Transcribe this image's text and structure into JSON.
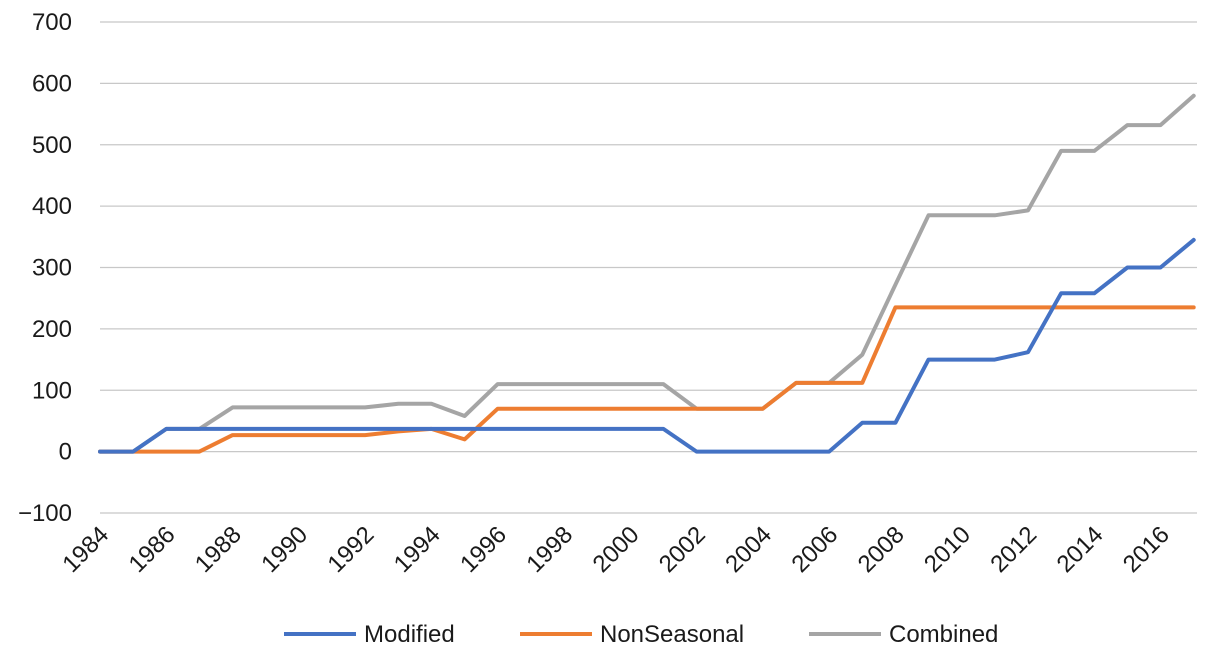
{
  "chart_data": {
    "type": "line",
    "title": "",
    "xlabel": "",
    "ylabel": "",
    "x": [
      1984,
      1985,
      1986,
      1987,
      1988,
      1989,
      1990,
      1991,
      1992,
      1993,
      1994,
      1995,
      1996,
      1997,
      1998,
      1999,
      2000,
      2001,
      2002,
      2003,
      2004,
      2005,
      2006,
      2007,
      2008,
      2009,
      2010,
      2011,
      2012,
      2013,
      2014,
      2015,
      2016,
      2017
    ],
    "x_tick_labels": [
      "1984",
      "1986",
      "1988",
      "1990",
      "1992",
      "1994",
      "1996",
      "1998",
      "2000",
      "2002",
      "2004",
      "2006",
      "2008",
      "2010",
      "2012",
      "2014",
      "2016"
    ],
    "ylim": [
      -100,
      700
    ],
    "y_ticks": [
      -100,
      0,
      100,
      200,
      300,
      400,
      500,
      600,
      700
    ],
    "y_tick_labels": [
      "−100",
      "0",
      "100",
      "200",
      "300",
      "400",
      "500",
      "600",
      "700"
    ],
    "grid": "horizontal",
    "legend": "bottom",
    "series": [
      {
        "name": "Modified",
        "color": "#4472C4",
        "values": [
          0,
          0,
          37,
          37,
          37,
          37,
          37,
          37,
          37,
          37,
          37,
          37,
          37,
          37,
          37,
          37,
          37,
          37,
          0,
          0,
          0,
          0,
          0,
          47,
          47,
          150,
          150,
          150,
          162,
          258,
          258,
          300,
          300,
          345
        ]
      },
      {
        "name": "NonSeasonal",
        "color": "#ED7D31",
        "values": [
          0,
          0,
          0,
          0,
          27,
          27,
          27,
          27,
          27,
          33,
          37,
          20,
          70,
          70,
          70,
          70,
          70,
          70,
          70,
          70,
          70,
          112,
          112,
          112,
          235,
          235,
          235,
          235,
          235,
          235,
          235,
          235,
          235,
          235
        ]
      },
      {
        "name": "Combined",
        "color": "#A5A5A5",
        "values": [
          0,
          0,
          37,
          37,
          72,
          72,
          72,
          72,
          72,
          78,
          78,
          58,
          110,
          110,
          110,
          110,
          110,
          110,
          70,
          70,
          70,
          112,
          112,
          158,
          272,
          385,
          385,
          385,
          393,
          490,
          490,
          532,
          532,
          580
        ]
      }
    ]
  }
}
